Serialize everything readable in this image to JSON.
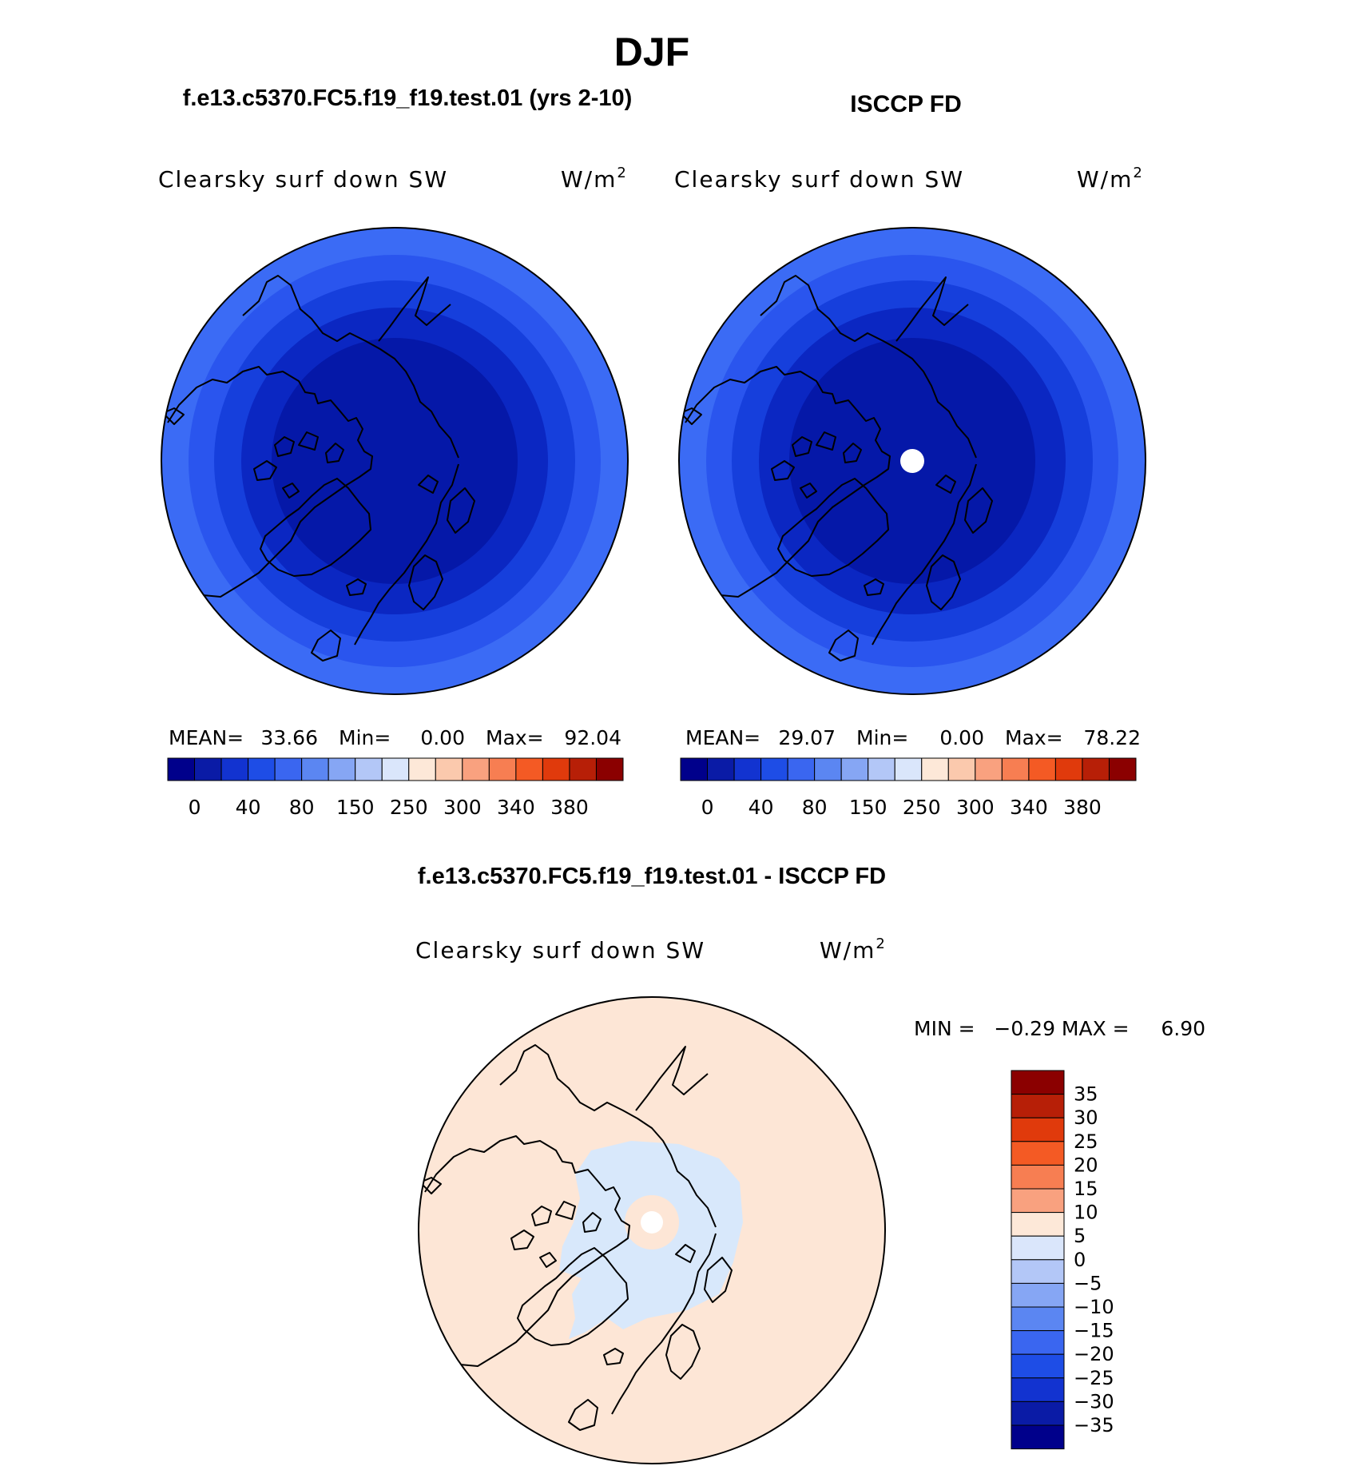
{
  "page": {
    "title": "DJF",
    "panel_top_left_title": "f.e13.c5370.FC5.f19_f19.test.01 (yrs 2-10)",
    "panel_top_right_title": "ISCCP FD",
    "panel_bottom_title": "f.e13.c5370.FC5.f19_f19.test.01 - ISCCP FD"
  },
  "panels": {
    "left": {
      "variable": "Clearsky surf down SW",
      "units": "W/m",
      "units_sup": "2",
      "stats": {
        "mean_label": "MEAN=",
        "mean": "33.66",
        "min_label": "Min=",
        "min": "0.00",
        "max_label": "Max=",
        "max": "92.04"
      }
    },
    "right": {
      "variable": "Clearsky surf down SW",
      "units": "W/m",
      "units_sup": "2",
      "stats": {
        "mean_label": "MEAN=",
        "mean": "29.07",
        "min_label": "Min=",
        "min": "0.00",
        "max_label": "Max=",
        "max": "78.22"
      }
    },
    "diff": {
      "variable": "Clearsky surf down SW",
      "units": "W/m",
      "units_sup": "2",
      "min_max": "MIN =   −0.29 MAX =     6.90"
    }
  },
  "abs_colorbar": {
    "colors": [
      "#00008b",
      "#0a1ba6",
      "#1233d0",
      "#1e4de6",
      "#3a66f0",
      "#5b86f2",
      "#86a6f4",
      "#b3c7f7",
      "#dae6fb",
      "#fde8d8",
      "#fbc9ad",
      "#f9a17f",
      "#f77e52",
      "#f45a24",
      "#e03a0c",
      "#b71f07",
      "#8b0000"
    ],
    "tick_labels": [
      "0",
      "40",
      "80",
      "150",
      "250",
      "300",
      "340",
      "380"
    ]
  },
  "diff_colorbar": {
    "colors": [
      "#8b0000",
      "#b71f07",
      "#e03a0c",
      "#f45a24",
      "#f77e52",
      "#f9a17f",
      "#fde8d8",
      "#dae6fb",
      "#b3c7f7",
      "#86a6f4",
      "#5b86f2",
      "#3a66f0",
      "#1e4de6",
      "#1233d0",
      "#0a1ba6",
      "#00008b"
    ],
    "tick_labels": [
      "35",
      "30",
      "25",
      "20",
      "15",
      "10",
      "5",
      "0",
      "−5",
      "−10",
      "−15",
      "−20",
      "−25",
      "−30",
      "−35"
    ]
  },
  "map_colors": {
    "abs_ring_outer": "#3b6bf5",
    "abs_ring_2": "#2a55ee",
    "abs_ring_3": "#163fdc",
    "abs_ring_4": "#0b27c2",
    "abs_core": "#0518a8",
    "diff_base": "#fde6d6",
    "diff_outer_warm": "#fbd0b8",
    "diff_neg": "#d8e8fb",
    "missing": "#ffffff"
  }
}
